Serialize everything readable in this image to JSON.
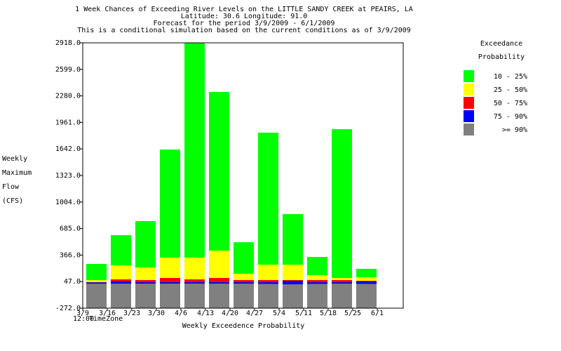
{
  "chart_data": {
    "type": "bar",
    "title": [
      "1 Week Chances of Exceeding River Levels on the LITTLE SANDY CREEK at PEAIRS, LA",
      "Latitude: 30.6    Longitude:  91.0",
      "Forecast for the period 3/9/2009 - 6/1/2009",
      "This is a conditional simulation based on the current conditions as of 3/9/2009"
    ],
    "ylabel": [
      "Weekly",
      "Maximum",
      "Flow",
      "(CFS)"
    ],
    "xlabel": "Weekly Exceedence Probability",
    "footnote": [
      "12:00",
      "TimeZone"
    ],
    "legend_title": [
      "Exceedance",
      "Probability"
    ],
    "categories": [
      "3/9",
      "3/16",
      "3/23",
      "3/30",
      "4/6",
      "4/13",
      "4/20",
      "4/27",
      "5/4",
      "5/11",
      "5/18",
      "5/25",
      "6/1"
    ],
    "series": [
      {
        "name": "10 - 25%",
        "color": "#00ff00",
        "values": [
          260,
          606,
          775,
          1635,
          2918,
          2327,
          521,
          1838,
          859,
          344,
          1880,
          201,
          null
        ]
      },
      {
        "name": "25 - 50%",
        "color": "#ffff00",
        "values": [
          66,
          243,
          218,
          336,
          336,
          420,
          142,
          251,
          251,
          125,
          91,
          100,
          null
        ]
      },
      {
        "name": "50 - 75%",
        "color": "#ff0000",
        "values": [
          40,
          74,
          66,
          91,
          74,
          91,
          66,
          66,
          66,
          66,
          66,
          57,
          null
        ]
      },
      {
        "name": "75 - 90%",
        "color": "#0000ff",
        "values": [
          38,
          49,
          40,
          40,
          40,
          40,
          40,
          40,
          57,
          40,
          40,
          49,
          null
        ]
      },
      {
        "name": ">= 90%",
        "color": "#808080",
        "values": [
          23,
          23,
          23,
          23,
          23,
          23,
          23,
          20,
          15,
          20,
          23,
          20,
          null
        ]
      }
    ],
    "ylim": [
      -272,
      2918
    ],
    "yticks": [
      {
        "value": -272,
        "label": "-272.0"
      },
      {
        "value": 47,
        "label": "47.0"
      },
      {
        "value": 366,
        "label": "366.0"
      },
      {
        "value": 685,
        "label": "685.0"
      },
      {
        "value": 1004,
        "label": "1004.0"
      },
      {
        "value": 1323,
        "label": "1323.0"
      },
      {
        "value": 1642,
        "label": "1642.0"
      },
      {
        "value": 1961,
        "label": "1961.0"
      },
      {
        "value": 2280,
        "label": "2280.0"
      },
      {
        "value": 2599,
        "label": "2599.0"
      },
      {
        "value": 2918,
        "label": "2918.0"
      }
    ]
  }
}
